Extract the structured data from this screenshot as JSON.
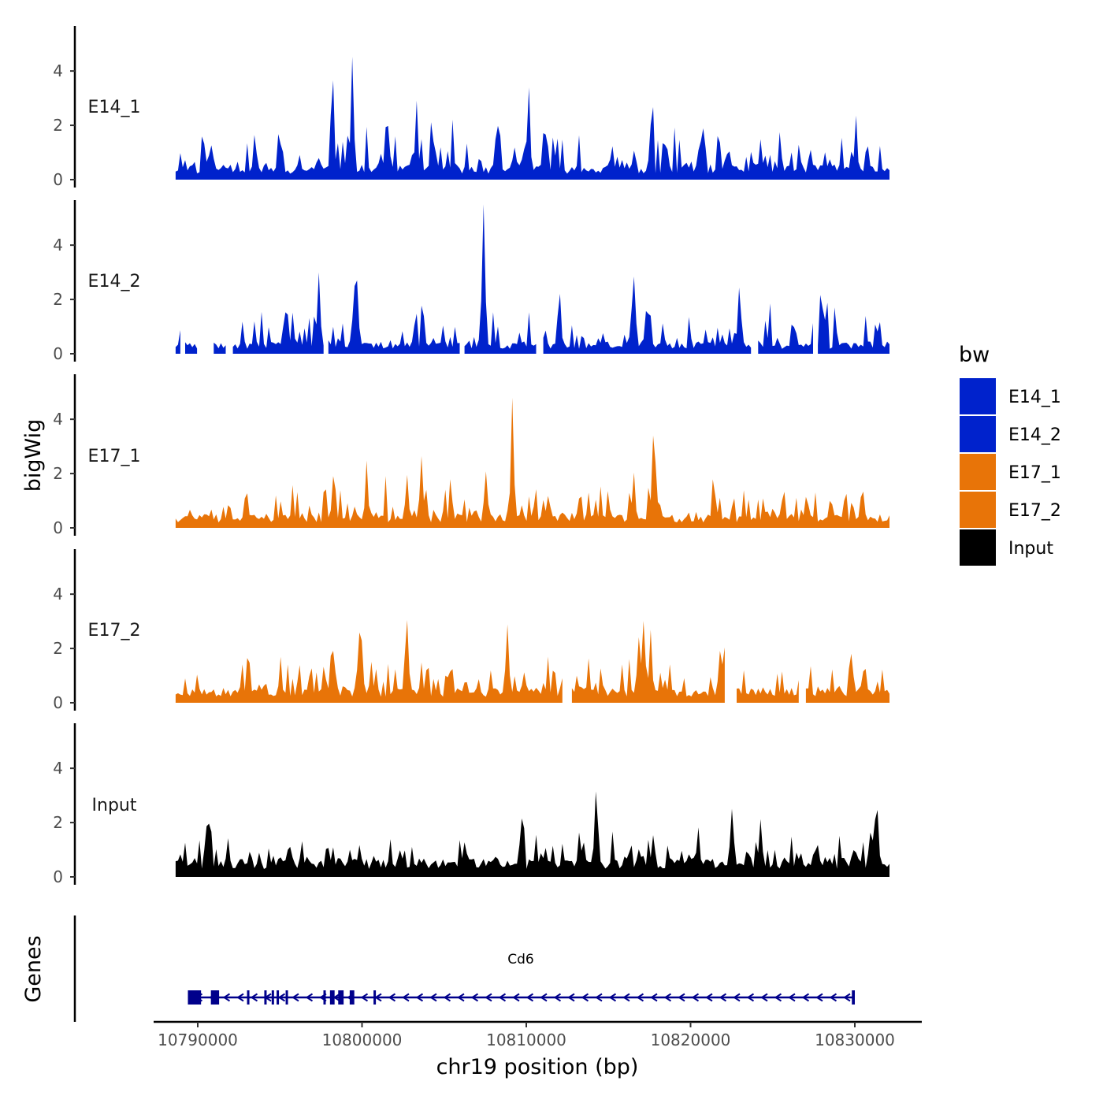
{
  "chart_data": {
    "type": "area",
    "ylabel": "bigWig",
    "genes_label": "Genes",
    "xlabel": "chr19 position (bp)",
    "x_range": [
      10788650,
      10832110
    ],
    "x_ticks": [
      10790000,
      10800000,
      10810000,
      10820000,
      10830000
    ],
    "x_tick_labels": [
      "10790000",
      "10800000",
      "10810000",
      "10820000",
      "10830000"
    ],
    "ylim": [
      0,
      5.6
    ],
    "y_ticks": [
      0,
      2,
      4
    ],
    "y_tick_labels": [
      "0",
      "2",
      "4"
    ],
    "legend_title": "bw",
    "legend": [
      {
        "label": "E14_1",
        "color": "#0022cc"
      },
      {
        "label": "E14_2",
        "color": "#0022cc"
      },
      {
        "label": "E17_1",
        "color": "#e87408"
      },
      {
        "label": "E17_2",
        "color": "#e87408"
      },
      {
        "label": "Input",
        "color": "#000000"
      }
    ],
    "series": [
      {
        "name": "E14_1",
        "color": "#0022cc",
        "seed": 11,
        "base": 0.55,
        "noise": 1.55,
        "peaks": [
          [
            10798200,
            1.8
          ],
          [
            10795000,
            0.9
          ],
          [
            10799400,
            4.3
          ],
          [
            10803300,
            2.1
          ],
          [
            10801500,
            1.4
          ],
          [
            10808300,
            1.5
          ],
          [
            10810200,
            1.7
          ],
          [
            10817600,
            1.5
          ],
          [
            10811100,
            1.3
          ],
          [
            10830100,
            1.2
          ]
        ],
        "gaps": []
      },
      {
        "name": "E14_2",
        "color": "#0022cc",
        "seed": 23,
        "base": 0.45,
        "noise": 1.5,
        "peaks": [
          [
            10807400,
            4.6
          ],
          [
            10797400,
            2.8
          ],
          [
            10799500,
            2.3
          ],
          [
            10795400,
            1.2
          ],
          [
            10816600,
            1.8
          ],
          [
            10812000,
            1.0
          ],
          [
            10822900,
            2.0
          ],
          [
            10828100,
            1.0
          ]
        ],
        "gaps": [
          [
            10789000,
            10789200
          ],
          [
            10790100,
            10790400
          ],
          [
            10790600,
            10790900
          ],
          [
            10791800,
            10792000
          ],
          [
            10797700,
            10797900
          ],
          [
            10806000,
            10806200
          ],
          [
            10810600,
            10810900
          ],
          [
            10823700,
            10824000
          ],
          [
            10827500,
            10827700
          ]
        ]
      },
      {
        "name": "E17_1",
        "color": "#e87408",
        "seed": 37,
        "base": 0.5,
        "noise": 1.35,
        "peaks": [
          [
            10809100,
            4.3
          ],
          [
            10803600,
            2.3
          ],
          [
            10800300,
            2.0
          ],
          [
            10802800,
            1.6
          ],
          [
            10807600,
            1.8
          ],
          [
            10817800,
            2.2
          ],
          [
            10816500,
            1.6
          ],
          [
            10798300,
            1.2
          ]
        ],
        "gaps": []
      },
      {
        "name": "E17_2",
        "color": "#e87408",
        "seed": 53,
        "base": 0.55,
        "noise": 1.5,
        "peaks": [
          [
            10802800,
            2.8
          ],
          [
            10808800,
            2.4
          ],
          [
            10817100,
            2.6
          ],
          [
            10817600,
            2.2
          ],
          [
            10816900,
            2.0
          ],
          [
            10821800,
            1.6
          ],
          [
            10798200,
            1.5
          ],
          [
            10800000,
            1.8
          ]
        ],
        "gaps": [
          [
            10812300,
            10812700
          ],
          [
            10822100,
            10822800
          ],
          [
            10826600,
            10827000
          ]
        ]
      },
      {
        "name": "Input",
        "color": "#000000",
        "seed": 71,
        "base": 0.7,
        "noise": 1.05,
        "peaks": [
          [
            10814200,
            2.6
          ],
          [
            10790600,
            1.5
          ],
          [
            10813200,
            1.0
          ],
          [
            10809700,
            1.6
          ],
          [
            10820500,
            1.4
          ],
          [
            10822500,
            1.6
          ],
          [
            10824300,
            1.5
          ],
          [
            10831300,
            1.8
          ],
          [
            10831000,
            1.2
          ]
        ],
        "gaps": []
      }
    ],
    "gene": {
      "name": "Cd6",
      "start": 10789400,
      "end": 10830000,
      "strand": "-",
      "exons": [
        [
          10789400,
          10790200
        ],
        [
          10790800,
          10791300
        ],
        [
          10793000,
          10793100
        ],
        [
          10794050,
          10794130
        ],
        [
          10794500,
          10794560
        ],
        [
          10794800,
          10794860
        ],
        [
          10795350,
          10795420
        ],
        [
          10797650,
          10797750
        ],
        [
          10798050,
          10798330
        ],
        [
          10798550,
          10798880
        ],
        [
          10799250,
          10799530
        ],
        [
          10800700,
          10800760
        ],
        [
          10829820,
          10830000
        ]
      ]
    }
  }
}
